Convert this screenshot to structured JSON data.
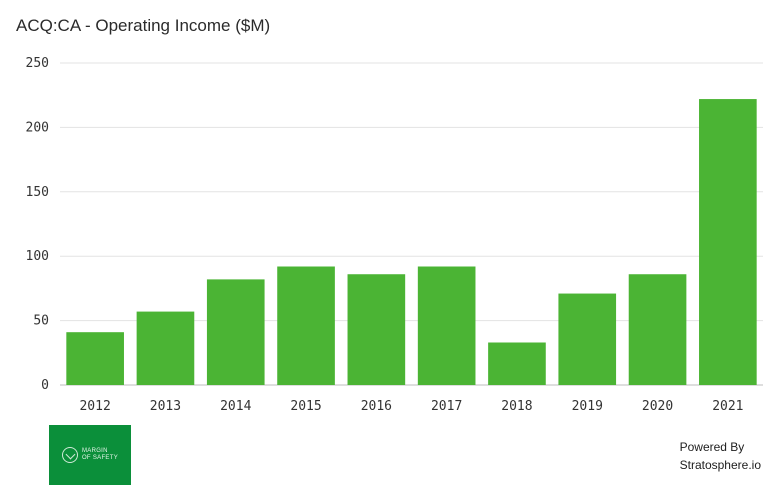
{
  "title": "ACQ:CA - Operating Income ($M)",
  "branding": {
    "logo_text_line1": "MARGIN",
    "logo_text_line2": "OF SAFETY",
    "powered_line1": "Powered By",
    "powered_line2": "Stratosphere.io",
    "logo_color": "#0b8f3a"
  },
  "chart_data": {
    "type": "bar",
    "title": "ACQ:CA - Operating Income ($M)",
    "categories": [
      "2012",
      "2013",
      "2014",
      "2015",
      "2016",
      "2017",
      "2018",
      "2019",
      "2020",
      "2021"
    ],
    "values": [
      41,
      57,
      82,
      92,
      86,
      92,
      33,
      71,
      86,
      222
    ],
    "ylim": [
      0,
      250
    ],
    "yticks": [
      0,
      50,
      100,
      150,
      200,
      250
    ],
    "bar_color": "#4bb434",
    "grid": true
  }
}
